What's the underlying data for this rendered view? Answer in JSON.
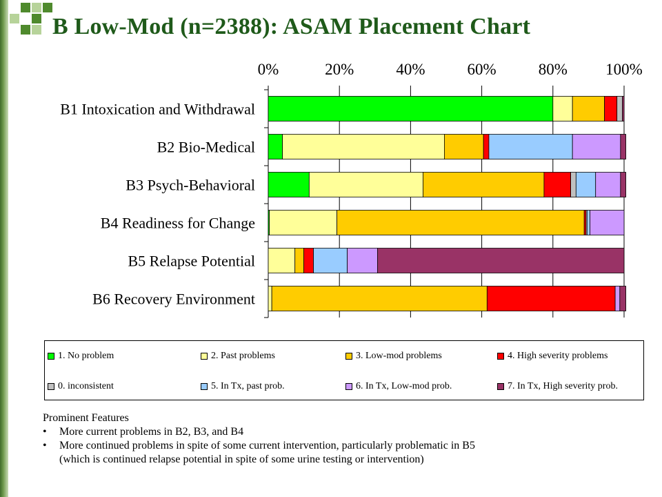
{
  "title": "B Low-Mod (n=2388): ASAM Placement Chart",
  "chart_data": {
    "type": "bar",
    "orientation": "horizontal",
    "stacked": true,
    "x_tick_labels": [
      "0%",
      "20%",
      "40%",
      "60%",
      "80%",
      "100%"
    ],
    "xlim": [
      0,
      100
    ],
    "x_axis_position": "top",
    "grid": true,
    "legend_placement": "bottom",
    "categories": [
      "B1 Intoxication and Withdrawal",
      "B2 Bio-Medical",
      "B3 Psych-Behavioral",
      "B4 Readiness for Change",
      "B5 Relapse Potential",
      "B6 Recovery Environment"
    ],
    "series": [
      {
        "name": "1. No problem",
        "color": "#00ff00",
        "values": [
          80,
          4,
          11.5,
          0.3,
          0,
          0
        ]
      },
      {
        "name": "2. Past problems",
        "color": "#ffff99",
        "values": [
          5.5,
          45.5,
          32,
          19,
          7.5,
          1
        ]
      },
      {
        "name": "3.  Low-mod problems",
        "color": "#ffcc00",
        "values": [
          9,
          11,
          34,
          69.5,
          2.5,
          60.5
        ]
      },
      {
        "name": "4. High severity problems",
        "color": "#ff0000",
        "values": [
          3.5,
          1.5,
          7.5,
          0.5,
          2.7,
          36
        ]
      },
      {
        "name": "0. inconsistent",
        "color": "#c0c0c0",
        "values": [
          1.5,
          0,
          1.5,
          0.3,
          0,
          0
        ]
      },
      {
        "name": "5. In Tx,  past prob.",
        "color": "#99ccff",
        "values": [
          0,
          23.5,
          5.5,
          0.8,
          9.5,
          0
        ]
      },
      {
        "name": "6. In Tx, Low-mod prob.",
        "color": "#cc99ff",
        "values": [
          0,
          13.5,
          7,
          9.6,
          8.5,
          1.3
        ]
      },
      {
        "name": "7. In Tx, High severity prob.",
        "color": "#993366",
        "values": [
          0.5,
          1.5,
          1.5,
          0,
          69.3,
          1.7
        ]
      }
    ]
  },
  "notes": {
    "heading": "Prominent Features",
    "bullets": [
      "More current problems in B2, B3, and B4",
      "More continued problems in spite of some current intervention, particularly problematic in B5",
      "(which is continued relapse potential in spite of some urine testing or intervention)"
    ]
  }
}
